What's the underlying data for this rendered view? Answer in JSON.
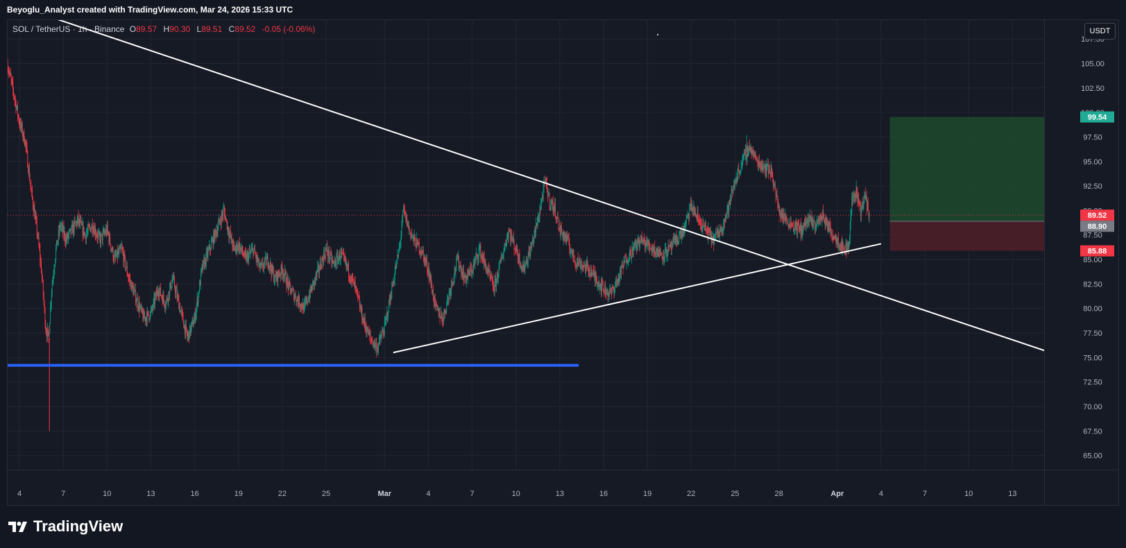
{
  "header": {
    "attribution": "Beyoglu_Analyst created with TradingView.com, Mar 24, 2026 15:33 UTC"
  },
  "legend": {
    "symbol": "SOL / TetherUS · 1h · Binance",
    "open_label": "O",
    "open": "89.57",
    "high_label": "H",
    "high": "90.30",
    "low_label": "L",
    "low": "89.51",
    "close_label": "C",
    "close": "89.52",
    "change": "-0.05 (-0.06%)"
  },
  "currency_button": "USDT",
  "footer": {
    "brand": "TradingView"
  },
  "colors": {
    "background": "#161a25",
    "up": "#089981",
    "down": "#f23645",
    "trendline": "#ffffff",
    "support_line": "#2962ff",
    "target_zone": "#1f4a2e",
    "stop_zone": "#4a1f28",
    "target_badge": "#22ab94",
    "stop_badge": "#f23645",
    "last_price_badge": "#f23645",
    "entry_badge": "#787b86"
  },
  "chart_data": {
    "type": "candlestick",
    "symbol": "SOL / TetherUS",
    "interval": "1h",
    "exchange": "Binance",
    "ylim": [
      63.5,
      108.5
    ],
    "y_ticks": [
      "65.00",
      "67.50",
      "70.00",
      "72.50",
      "75.00",
      "77.50",
      "80.00",
      "82.50",
      "85.00",
      "87.50",
      "90.00",
      "92.50",
      "95.00",
      "97.50",
      "100.00",
      "102.50",
      "105.00",
      "107.50"
    ],
    "x_ticks": [
      {
        "label": "4",
        "day": 0,
        "bold": false
      },
      {
        "label": "7",
        "day": 3,
        "bold": false
      },
      {
        "label": "10",
        "day": 6,
        "bold": false
      },
      {
        "label": "13",
        "day": 9,
        "bold": false
      },
      {
        "label": "16",
        "day": 12,
        "bold": false
      },
      {
        "label": "19",
        "day": 15,
        "bold": false
      },
      {
        "label": "22",
        "day": 18,
        "bold": false
      },
      {
        "label": "25",
        "day": 21,
        "bold": false
      },
      {
        "label": "Mar",
        "day": 25,
        "bold": true
      },
      {
        "label": "4",
        "day": 28,
        "bold": false
      },
      {
        "label": "7",
        "day": 31,
        "bold": false
      },
      {
        "label": "10",
        "day": 34,
        "bold": false
      },
      {
        "label": "13",
        "day": 37,
        "bold": false
      },
      {
        "label": "16",
        "day": 40,
        "bold": false
      },
      {
        "label": "19",
        "day": 43,
        "bold": false
      },
      {
        "label": "22",
        "day": 46,
        "bold": false
      },
      {
        "label": "25",
        "day": 49,
        "bold": false
      },
      {
        "label": "28",
        "day": 52,
        "bold": false
      },
      {
        "label": "Apr",
        "day": 56,
        "bold": true
      },
      {
        "label": "4",
        "day": 59,
        "bold": false
      },
      {
        "label": "7",
        "day": 62,
        "bold": false
      },
      {
        "label": "10",
        "day": 65,
        "bold": false
      },
      {
        "label": "13",
        "day": 68,
        "bold": false
      }
    ],
    "price_path": [
      [
        -0.8,
        104.8
      ],
      [
        -0.4,
        102
      ],
      [
        0,
        99
      ],
      [
        0.4,
        97
      ],
      [
        0.8,
        92
      ],
      [
        1.2,
        88
      ],
      [
        1.5,
        84
      ],
      [
        1.8,
        78
      ],
      [
        2.0,
        77
      ],
      [
        2.2,
        82
      ],
      [
        2.5,
        86
      ],
      [
        2.8,
        88.5
      ],
      [
        3.2,
        87
      ],
      [
        3.6,
        88
      ],
      [
        4.0,
        89
      ],
      [
        4.5,
        87.5
      ],
      [
        5.0,
        88.5
      ],
      [
        5.5,
        87
      ],
      [
        6.0,
        88
      ],
      [
        6.5,
        85
      ],
      [
        7.0,
        86
      ],
      [
        7.5,
        83
      ],
      [
        8.0,
        81
      ],
      [
        8.5,
        79
      ],
      [
        9.0,
        79.5
      ],
      [
        9.5,
        82
      ],
      [
        10.0,
        80.5
      ],
      [
        10.5,
        83
      ],
      [
        11.0,
        80
      ],
      [
        11.5,
        77
      ],
      [
        12.0,
        79
      ],
      [
        12.5,
        84
      ],
      [
        13.0,
        86
      ],
      [
        13.5,
        88
      ],
      [
        14.0,
        90
      ],
      [
        14.3,
        88
      ],
      [
        14.7,
        86
      ],
      [
        15.0,
        86.5
      ],
      [
        15.5,
        85
      ],
      [
        16.0,
        86
      ],
      [
        16.5,
        84
      ],
      [
        17.0,
        85
      ],
      [
        17.5,
        83
      ],
      [
        18.0,
        84
      ],
      [
        18.5,
        82
      ],
      [
        19.0,
        81
      ],
      [
        19.5,
        80
      ],
      [
        20.0,
        82
      ],
      [
        20.5,
        84
      ],
      [
        21.0,
        86
      ],
      [
        21.5,
        84.5
      ],
      [
        22.0,
        85.5
      ],
      [
        22.5,
        84
      ],
      [
        23.0,
        82
      ],
      [
        23.5,
        79
      ],
      [
        24.0,
        77
      ],
      [
        24.5,
        76
      ],
      [
        25.0,
        78
      ],
      [
        25.5,
        82
      ],
      [
        26.0,
        86
      ],
      [
        26.3,
        90
      ],
      [
        26.7,
        88
      ],
      [
        27.0,
        87
      ],
      [
        27.5,
        86
      ],
      [
        28.0,
        84
      ],
      [
        28.5,
        80
      ],
      [
        29.0,
        79
      ],
      [
        29.5,
        82
      ],
      [
        30.0,
        85
      ],
      [
        30.5,
        83
      ],
      [
        31.0,
        84
      ],
      [
        31.5,
        86
      ],
      [
        32.0,
        84
      ],
      [
        32.5,
        82
      ],
      [
        33.0,
        85
      ],
      [
        33.5,
        88
      ],
      [
        34.0,
        86
      ],
      [
        34.5,
        84
      ],
      [
        35.0,
        86
      ],
      [
        35.5,
        89
      ],
      [
        36.0,
        93
      ],
      [
        36.3,
        91
      ],
      [
        36.7,
        90
      ],
      [
        37.0,
        88
      ],
      [
        37.5,
        87
      ],
      [
        38.0,
        85
      ],
      [
        38.5,
        84.5
      ],
      [
        39.0,
        84
      ],
      [
        39.5,
        83
      ],
      [
        40.0,
        82
      ],
      [
        40.5,
        81.5
      ],
      [
        41.0,
        83
      ],
      [
        41.5,
        85
      ],
      [
        42.0,
        86
      ],
      [
        42.5,
        87
      ],
      [
        43.0,
        86.5
      ],
      [
        43.5,
        86
      ],
      [
        44.0,
        85.5
      ],
      [
        44.5,
        86
      ],
      [
        45.0,
        87
      ],
      [
        45.5,
        88
      ],
      [
        46.0,
        90.5
      ],
      [
        46.5,
        89
      ],
      [
        47.0,
        88
      ],
      [
        47.5,
        87
      ],
      [
        48.0,
        88
      ],
      [
        48.5,
        90
      ],
      [
        49.0,
        93
      ],
      [
        49.5,
        95
      ],
      [
        50.0,
        96.5
      ],
      [
        50.5,
        95
      ],
      [
        51.0,
        94.5
      ],
      [
        51.5,
        94
      ],
      [
        52.0,
        90
      ],
      [
        52.5,
        89
      ],
      [
        53.0,
        88.5
      ],
      [
        53.5,
        88
      ],
      [
        54.0,
        89
      ],
      [
        54.5,
        88.5
      ],
      [
        55.0,
        89.5
      ],
      [
        55.5,
        88
      ],
      [
        56.0,
        87
      ],
      [
        56.5,
        86
      ],
      [
        56.8,
        86.5
      ],
      [
        57.0,
        91
      ],
      [
        57.3,
        92
      ],
      [
        57.6,
        90
      ],
      [
        57.9,
        91.5
      ],
      [
        58.2,
        89.5
      ]
    ],
    "trendlines": [
      {
        "from": [
          0.0,
          110.8
        ],
        "to": [
          71.0,
          75.3
        ],
        "color": "#ffffff"
      },
      {
        "from": [
          25.6,
          75.5
        ],
        "to": [
          59.0,
          86.6
        ],
        "color": "#ffffff"
      }
    ],
    "support_line": {
      "from": [
        -1.0,
        74.2
      ],
      "to": [
        38.3,
        74.2
      ],
      "value": 74.2
    },
    "position": {
      "entry": 88.9,
      "target": 99.54,
      "stop": 85.88,
      "from_day": 59.6,
      "to_day": 70.6
    },
    "last_price": 89.52,
    "price_labels": {
      "target": "99.54",
      "last": "89.52",
      "entry": "88.90",
      "stop": "85.88"
    }
  }
}
